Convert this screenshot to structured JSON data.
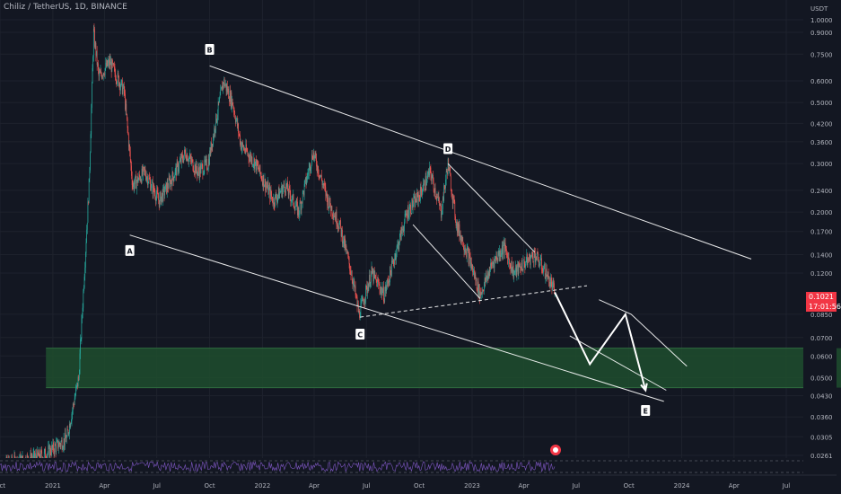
{
  "title": "Chiliz / TetherUS, 1D, BINANCE",
  "currency": "USDT",
  "last_price": {
    "value": "0.1021",
    "countdown": "17:01:56",
    "color": "#f23645"
  },
  "colors": {
    "background": "#131722",
    "up": "#26a69a",
    "down": "#ef5350",
    "lines": "#ffffff",
    "zone": "#1f4d2e",
    "rsi": "#7e57c2"
  },
  "chart_data": {
    "type": "candlestick",
    "scale": "log",
    "x_ticks": [
      "Oct",
      "2021",
      "Apr",
      "Jul",
      "Oct",
      "2022",
      "Apr",
      "Jul",
      "Oct",
      "2023",
      "Apr",
      "Jul",
      "Oct",
      "2024",
      "Apr",
      "Jul"
    ],
    "y_ticks": [
      "1.0000",
      "0.9000",
      "0.7500",
      "0.6000",
      "0.5000",
      "0.4200",
      "0.3600",
      "0.3000",
      "0.2400",
      "0.2000",
      "0.1700",
      "0.1400",
      "0.1200",
      "0.0850",
      "0.0700",
      "0.0600",
      "0.0500",
      "0.0430",
      "0.0360",
      "0.0305",
      "0.0261"
    ],
    "ylim": [
      0.024,
      1.1
    ],
    "wave_labels": [
      "A",
      "B",
      "C",
      "D",
      "E"
    ],
    "price_path": [
      [
        "2020-10-01",
        0.024
      ],
      [
        "2020-12-15",
        0.026
      ],
      [
        "2021-01-25",
        0.03
      ],
      [
        "2021-02-15",
        0.05
      ],
      [
        "2021-03-05",
        0.25
      ],
      [
        "2021-03-13",
        0.9
      ],
      [
        "2021-03-22",
        0.62
      ],
      [
        "2021-04-10",
        0.7
      ],
      [
        "2021-05-05",
        0.55
      ],
      [
        "2021-05-20",
        0.25
      ],
      [
        "2021-06-10",
        0.28
      ],
      [
        "2021-07-05",
        0.22
      ],
      [
        "2021-07-25",
        0.26
      ],
      [
        "2021-08-20",
        0.33
      ],
      [
        "2021-09-10",
        0.28
      ],
      [
        "2021-09-28",
        0.3
      ],
      [
        "2021-10-25",
        0.6
      ],
      [
        "2021-11-10",
        0.5
      ],
      [
        "2021-11-25",
        0.35
      ],
      [
        "2021-12-20",
        0.3
      ],
      [
        "2022-01-20",
        0.22
      ],
      [
        "2022-02-10",
        0.25
      ],
      [
        "2022-03-05",
        0.2
      ],
      [
        "2022-03-30",
        0.33
      ],
      [
        "2022-04-25",
        0.22
      ],
      [
        "2022-05-15",
        0.18
      ],
      [
        "2022-06-05",
        0.12
      ],
      [
        "2022-06-18",
        0.085
      ],
      [
        "2022-07-10",
        0.12
      ],
      [
        "2022-08-01",
        0.1
      ],
      [
        "2022-08-20",
        0.14
      ],
      [
        "2022-09-10",
        0.2
      ],
      [
        "2022-10-01",
        0.23
      ],
      [
        "2022-10-20",
        0.28
      ],
      [
        "2022-11-08",
        0.2
      ],
      [
        "2022-11-20",
        0.3
      ],
      [
        "2022-12-05",
        0.18
      ],
      [
        "2022-12-25",
        0.14
      ],
      [
        "2023-01-15",
        0.1
      ],
      [
        "2023-02-05",
        0.13
      ],
      [
        "2023-02-25",
        0.15
      ],
      [
        "2023-03-15",
        0.12
      ],
      [
        "2023-04-01",
        0.13
      ],
      [
        "2023-04-20",
        0.14
      ],
      [
        "2023-05-10",
        0.12
      ],
      [
        "2023-05-25",
        0.1021
      ]
    ],
    "trendlines": [
      {
        "name": "upper-channel",
        "points": [
          [
            "2021-10-01",
            0.68
          ],
          [
            "2024-05-01",
            0.135
          ]
        ]
      },
      {
        "name": "lower-channel",
        "points": [
          [
            "2021-05-15",
            0.165
          ],
          [
            "2023-12-01",
            0.041
          ]
        ]
      },
      {
        "name": "wedge-support",
        "points": [
          [
            "2022-06-20",
            0.083
          ],
          [
            "2023-07-20",
            0.108
          ]
        ],
        "dashed": true
      },
      {
        "name": "wedge-upper",
        "points": [
          [
            "2022-11-20",
            0.3
          ],
          [
            "2023-04-20",
            0.143
          ]
        ]
      },
      {
        "name": "wedge-lower",
        "points": [
          [
            "2022-09-20",
            0.18
          ],
          [
            "2023-01-15",
            0.097
          ]
        ]
      },
      {
        "name": "projected-upper",
        "points": [
          [
            "2023-08-10",
            0.096
          ],
          [
            "2023-10-05",
            0.085
          ],
          [
            "2024-01-10",
            0.055
          ]
        ]
      },
      {
        "name": "projected-lower",
        "points": [
          [
            "2023-06-20",
            0.071
          ],
          [
            "2023-12-05",
            0.045
          ]
        ]
      }
    ],
    "projection_path": [
      [
        "2023-05-25",
        0.1021
      ],
      [
        "2023-07-25",
        0.056
      ],
      [
        "2023-09-25",
        0.085
      ],
      [
        "2023-10-30",
        0.045
      ]
    ],
    "zone": {
      "from": "2020-12-20",
      "to": "2024-12-31",
      "top": 0.064,
      "bottom": 0.046
    }
  }
}
